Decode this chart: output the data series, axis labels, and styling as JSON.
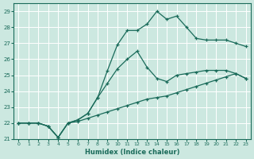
{
  "xlabel": "Humidex (Indice chaleur)",
  "xlim": [
    -0.5,
    23.5
  ],
  "ylim": [
    21,
    29.5
  ],
  "xticks": [
    0,
    1,
    2,
    3,
    4,
    5,
    6,
    7,
    8,
    9,
    10,
    11,
    12,
    13,
    14,
    15,
    16,
    17,
    18,
    19,
    20,
    21,
    22,
    23
  ],
  "yticks": [
    21,
    22,
    23,
    24,
    25,
    26,
    27,
    28,
    29
  ],
  "bg_color": "#cce8e0",
  "grid_color": "#ffffff",
  "line_color": "#1a6b5a",
  "line1_x": [
    0,
    1,
    2,
    3,
    4,
    5,
    6,
    7,
    8,
    9,
    10,
    11,
    12,
    13,
    14,
    15,
    16,
    17,
    18,
    19,
    20,
    21,
    22,
    23
  ],
  "line1_y": [
    22.0,
    22.0,
    22.0,
    21.8,
    21.1,
    22.0,
    22.1,
    22.3,
    22.5,
    22.7,
    22.9,
    23.1,
    23.3,
    23.5,
    23.6,
    23.7,
    23.9,
    24.1,
    24.3,
    24.5,
    24.7,
    24.9,
    25.1,
    24.8
  ],
  "line2_x": [
    0,
    1,
    2,
    3,
    4,
    5,
    6,
    7,
    8,
    9,
    10,
    11,
    12,
    13,
    14,
    15,
    16,
    17,
    18,
    19,
    20,
    21,
    22,
    23
  ],
  "line2_y": [
    22.0,
    22.0,
    22.0,
    21.8,
    21.1,
    22.0,
    22.2,
    22.6,
    23.6,
    25.3,
    26.9,
    27.8,
    27.8,
    28.2,
    29.0,
    28.5,
    28.7,
    28.0,
    27.3,
    27.2,
    27.2,
    27.2,
    27.0,
    26.8
  ],
  "line3_x": [
    0,
    1,
    2,
    3,
    4,
    5,
    6,
    7,
    8,
    9,
    10,
    11,
    12,
    13,
    14,
    15,
    16,
    17,
    18,
    19,
    20,
    21,
    22,
    23
  ],
  "line3_y": [
    22.0,
    22.0,
    22.0,
    21.8,
    21.1,
    22.0,
    22.2,
    22.6,
    23.6,
    24.5,
    25.4,
    26.0,
    26.5,
    25.5,
    24.8,
    24.6,
    25.0,
    25.1,
    25.2,
    25.3,
    25.3,
    25.3,
    25.1,
    24.8
  ]
}
